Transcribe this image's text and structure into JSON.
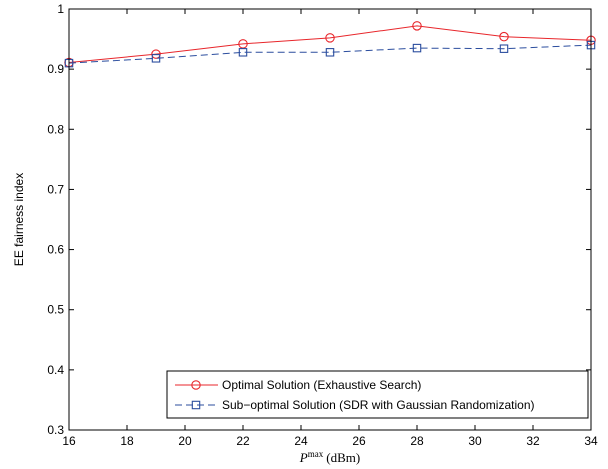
{
  "chart_data": {
    "type": "line",
    "xlabel": {
      "symbol": "P",
      "superscript": "max",
      "unit": "(dBm)"
    },
    "ylabel": "EE fairness index",
    "xlim": [
      16,
      34
    ],
    "ylim": [
      0.3,
      1
    ],
    "xticks": [
      "16",
      "18",
      "20",
      "22",
      "24",
      "26",
      "28",
      "30",
      "32",
      "34"
    ],
    "yticks": [
      "0.3",
      "0.4",
      "0.5",
      "0.6",
      "0.7",
      "0.8",
      "0.9",
      "1"
    ],
    "grid": false,
    "legend_position": "bottom-right",
    "x": [
      16,
      19,
      22,
      25,
      28,
      31,
      34
    ],
    "series": [
      {
        "name": "Optimal Solution (Exhaustive Search)",
        "values": [
          0.911,
          0.925,
          0.942,
          0.952,
          0.972,
          0.954,
          0.948
        ],
        "color": "#e8262b",
        "marker": "circle",
        "dash": "solid"
      },
      {
        "name": "Sub−optimal Solution (SDR with Gaussian Randomization)",
        "values": [
          0.91,
          0.918,
          0.928,
          0.928,
          0.935,
          0.934,
          0.94
        ],
        "color": "#2b4d9e",
        "marker": "square",
        "dash": "dashed"
      }
    ]
  }
}
